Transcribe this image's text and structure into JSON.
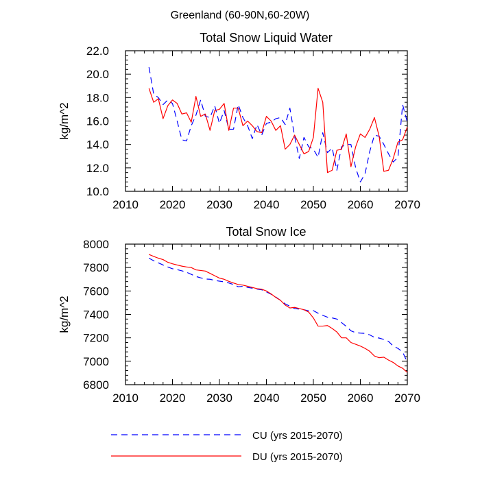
{
  "figure_title": "Greenland (60-90N,60-20W)",
  "chart_data": [
    {
      "type": "line",
      "title": "Total Snow Liquid Water",
      "xlabel": "",
      "ylabel": "kg/m^2",
      "xlim": [
        2010,
        2070
      ],
      "ylim": [
        10.0,
        22.0
      ],
      "xticks": [
        "2010",
        "2020",
        "2030",
        "2040",
        "2050",
        "2060",
        "2070"
      ],
      "yticks": [
        "10.0",
        "12.0",
        "14.0",
        "16.0",
        "18.0",
        "20.0",
        "22.0"
      ],
      "x": [
        2015,
        2016,
        2017,
        2018,
        2019,
        2020,
        2021,
        2022,
        2023,
        2024,
        2025,
        2026,
        2027,
        2028,
        2029,
        2030,
        2031,
        2032,
        2033,
        2034,
        2035,
        2036,
        2037,
        2038,
        2039,
        2040,
        2041,
        2042,
        2043,
        2044,
        2045,
        2046,
        2047,
        2048,
        2049,
        2050,
        2051,
        2052,
        2053,
        2054,
        2055,
        2056,
        2057,
        2058,
        2059,
        2060,
        2061,
        2062,
        2063,
        2064,
        2065,
        2066,
        2067,
        2068,
        2069,
        2070
      ],
      "series": [
        {
          "name": "CU (yrs 2015-2070)",
          "color": "#0000ff",
          "dash": "dashed",
          "values": [
            20.6,
            18.3,
            18.0,
            17.4,
            17.8,
            17.5,
            16.0,
            14.4,
            14.3,
            15.6,
            16.5,
            17.8,
            16.4,
            16.3,
            17.3,
            15.8,
            16.9,
            15.3,
            15.3,
            17.4,
            16.3,
            15.6,
            14.5,
            15.7,
            14.8,
            15.8,
            15.9,
            16.2,
            16.3,
            15.7,
            17.1,
            14.7,
            12.8,
            14.6,
            13.8,
            13.6,
            12.9,
            15.0,
            13.3,
            13.7,
            11.8,
            13.8,
            14.0,
            14.0,
            12.0,
            10.8,
            11.5,
            13.4,
            14.8,
            14.7,
            14.0,
            13.2,
            12.5,
            12.9,
            17.4,
            15.9
          ]
        },
        {
          "name": "DU (yrs 2015-2070)",
          "color": "#ff0000",
          "dash": "solid",
          "values": [
            18.8,
            17.6,
            17.9,
            16.2,
            17.3,
            17.8,
            17.5,
            16.6,
            16.7,
            15.9,
            18.1,
            16.4,
            16.6,
            15.2,
            16.9,
            17.0,
            17.5,
            15.2,
            17.1,
            17.1,
            15.6,
            16.0,
            15.6,
            15.1,
            15.0,
            16.4,
            16.0,
            15.2,
            15.6,
            13.6,
            14.0,
            14.8,
            14.0,
            13.2,
            13.4,
            14.6,
            18.8,
            17.6,
            11.6,
            11.8,
            13.5,
            13.6,
            14.9,
            12.1,
            13.8,
            14.9,
            14.6,
            15.3,
            16.3,
            14.7,
            11.7,
            11.8,
            12.8,
            14.2,
            14.4,
            15.5
          ]
        }
      ]
    },
    {
      "type": "line",
      "title": "Total Snow Ice",
      "xlabel": "",
      "ylabel": "kg/m^2",
      "xlim": [
        2010,
        2070
      ],
      "ylim": [
        6800,
        8000
      ],
      "xticks": [
        "2010",
        "2020",
        "2030",
        "2040",
        "2050",
        "2060",
        "2070"
      ],
      "yticks": [
        "6800",
        "7000",
        "7200",
        "7400",
        "7600",
        "7800",
        "8000"
      ],
      "x": [
        2015,
        2016,
        2017,
        2018,
        2019,
        2020,
        2021,
        2022,
        2023,
        2024,
        2025,
        2026,
        2027,
        2028,
        2029,
        2030,
        2031,
        2032,
        2033,
        2034,
        2035,
        2036,
        2037,
        2038,
        2039,
        2040,
        2041,
        2042,
        2043,
        2044,
        2045,
        2046,
        2047,
        2048,
        2049,
        2050,
        2051,
        2052,
        2053,
        2054,
        2055,
        2056,
        2057,
        2058,
        2059,
        2060,
        2061,
        2062,
        2063,
        2064,
        2065,
        2066,
        2067,
        2068,
        2069,
        2070
      ],
      "series": [
        {
          "name": "CU (yrs 2015-2070)",
          "color": "#0000ff",
          "dash": "dashed",
          "values": [
            7880,
            7858,
            7840,
            7822,
            7805,
            7790,
            7782,
            7772,
            7760,
            7742,
            7724,
            7712,
            7702,
            7700,
            7690,
            7684,
            7678,
            7668,
            7655,
            7636,
            7640,
            7630,
            7624,
            7616,
            7610,
            7592,
            7572,
            7548,
            7520,
            7490,
            7470,
            7450,
            7445,
            7440,
            7430,
            7432,
            7410,
            7392,
            7376,
            7370,
            7360,
            7330,
            7298,
            7260,
            7244,
            7240,
            7238,
            7225,
            7204,
            7198,
            7186,
            7170,
            7130,
            7110,
            7080,
            6990
          ]
        },
        {
          "name": "DU (yrs 2015-2070)",
          "color": "#ff0000",
          "dash": "solid",
          "values": [
            7912,
            7895,
            7880,
            7868,
            7845,
            7832,
            7822,
            7812,
            7805,
            7800,
            7780,
            7775,
            7770,
            7750,
            7730,
            7710,
            7700,
            7682,
            7668,
            7655,
            7650,
            7640,
            7630,
            7620,
            7615,
            7600,
            7575,
            7545,
            7520,
            7480,
            7455,
            7460,
            7450,
            7440,
            7420,
            7370,
            7300,
            7300,
            7305,
            7280,
            7250,
            7200,
            7200,
            7160,
            7145,
            7130,
            7110,
            7085,
            7045,
            7030,
            7035,
            7010,
            6990,
            6960,
            6940,
            6905
          ]
        }
      ]
    }
  ],
  "legend": [
    {
      "label": "CU (yrs 2015-2070)",
      "color": "#0000ff",
      "dash": "dashed"
    },
    {
      "label": "DU (yrs 2015-2070)",
      "color": "#ff0000",
      "dash": "solid"
    }
  ]
}
